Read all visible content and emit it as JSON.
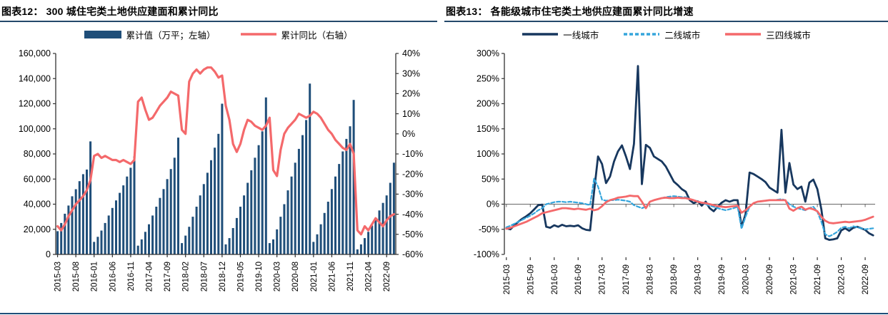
{
  "page": {
    "rule_color": "#1f4e79"
  },
  "months": [
    "2015-03",
    "2015-04",
    "2015-05",
    "2015-06",
    "2015-07",
    "2015-08",
    "2015-09",
    "2015-10",
    "2015-11",
    "2015-12",
    "2016-01",
    "2016-02",
    "2016-03",
    "2016-04",
    "2016-05",
    "2016-06",
    "2016-07",
    "2016-08",
    "2016-09",
    "2016-10",
    "2016-11",
    "2016-12",
    "2017-01",
    "2017-02",
    "2017-03",
    "2017-04",
    "2017-05",
    "2017-06",
    "2017-07",
    "2017-08",
    "2017-09",
    "2017-10",
    "2017-11",
    "2017-12",
    "2018-01",
    "2018-02",
    "2018-03",
    "2018-04",
    "2018-05",
    "2018-06",
    "2018-07",
    "2018-08",
    "2018-09",
    "2018-10",
    "2018-11",
    "2018-12",
    "2019-01",
    "2019-02",
    "2019-03",
    "2019-04",
    "2019-05",
    "2019-06",
    "2019-07",
    "2019-08",
    "2019-09",
    "2019-10",
    "2019-11",
    "2019-12",
    "2020-01",
    "2020-02",
    "2020-03",
    "2020-04",
    "2020-05",
    "2020-06",
    "2020-07",
    "2020-08",
    "2020-09",
    "2020-10",
    "2020-11",
    "2020-12",
    "2021-01",
    "2021-02",
    "2021-03",
    "2021-04",
    "2021-05",
    "2021-06",
    "2021-07",
    "2021-08",
    "2021-09",
    "2021-10",
    "2021-11",
    "2021-12",
    "2022-01",
    "2022-02",
    "2022-03",
    "2022-04",
    "2022-05",
    "2022-06",
    "2022-07",
    "2022-08",
    "2022-09",
    "2022-10",
    "2022-11"
  ],
  "chart_data": [
    {
      "type": "bar",
      "title": "图表12： 300 城住宅类土地供应建面和累计同比",
      "legend": [
        {
          "label": "累计值（万平；左轴）",
          "kind": "bar",
          "color": "#1f4e79",
          "dash": ""
        },
        {
          "label": "累计同比（右轴）",
          "kind": "line",
          "color": "#f4696b",
          "dash": ""
        }
      ],
      "x_tick_every": 5,
      "left_axis": {
        "min": 0,
        "max": 160000,
        "step": 20000,
        "format": "thousands"
      },
      "right_axis": {
        "min": -60,
        "max": 40,
        "step": 10,
        "format": "percent"
      },
      "bars": {
        "name": "累计值（万平；左轴）",
        "color": "#1f4e79",
        "values": [
          18500,
          25000,
          32400,
          38900,
          46300,
          51900,
          58300,
          63900,
          67600,
          90000,
          10000,
          14000,
          19000,
          25000,
          31000,
          37000,
          43000,
          49000,
          55000,
          62000,
          69000,
          78000,
          7000,
          12000,
          18000,
          24000,
          31000,
          38000,
          45000,
          52000,
          60000,
          68000,
          77000,
          93000,
          9000,
          15000,
          22000,
          30000,
          38000,
          47000,
          56000,
          65000,
          75000,
          85000,
          96000,
          120000,
          8000,
          13000,
          21000,
          29000,
          38000,
          47000,
          57000,
          67000,
          77000,
          87000,
          98000,
          125000,
          9000,
          12000,
          20000,
          30000,
          40000,
          51000,
          62000,
          73000,
          84000,
          95000,
          107000,
          136000,
          10000,
          16000,
          24000,
          33000,
          42000,
          52000,
          62000,
          72000,
          82000,
          92000,
          102000,
          123000,
          4000,
          8000,
          13000,
          18000,
          23000,
          29000,
          35000,
          41000,
          47000,
          57000,
          73000
        ]
      },
      "line": {
        "name": "累计同比（右轴）",
        "color": "#f4696b",
        "width": 3.2,
        "values": [
          -46,
          -48,
          -45,
          -41,
          -38,
          -35,
          -33,
          -31,
          -28,
          -23,
          -11,
          -10,
          -12,
          -11,
          -12,
          -13,
          -13,
          -14,
          -13,
          -14,
          -15,
          -13,
          16,
          18,
          12,
          7,
          8,
          11,
          14,
          16,
          18,
          21,
          20,
          19,
          2,
          0,
          26,
          30,
          32,
          30,
          32,
          33,
          33,
          31,
          28,
          29,
          14,
          7,
          -5,
          -9,
          -5,
          2,
          7,
          6,
          4,
          3,
          2,
          4,
          8,
          -18,
          -21,
          -8,
          0,
          3,
          5,
          7,
          10,
          9,
          8,
          9,
          11,
          10,
          8,
          5,
          2,
          0,
          -3,
          -5,
          -7,
          -8,
          -5,
          -10,
          -48,
          -50,
          -46,
          -48,
          -45,
          -42,
          -44,
          -46,
          -43,
          -41,
          -40
        ]
      }
    },
    {
      "type": "line",
      "title": "图表13： 各能级城市住宅类土地供应建面累计同比增速",
      "legend": [
        {
          "label": "一线城市",
          "kind": "line",
          "color": "#17375e",
          "dash": ""
        },
        {
          "label": "二线城市",
          "kind": "line",
          "color": "#35a5dc",
          "dash": "5,3"
        },
        {
          "label": "三四线城市",
          "kind": "line",
          "color": "#f4696b",
          "dash": ""
        }
      ],
      "x_tick_every": 6,
      "y_axis": {
        "min": -100,
        "max": 300,
        "step": 50,
        "format": "percent"
      },
      "series": [
        {
          "name": "一线城市",
          "color": "#17375e",
          "dash": "",
          "width": 2.8,
          "values": [
            -48,
            -50,
            -42,
            -35,
            -29,
            -24,
            -18,
            -10,
            -2,
            -1,
            -45,
            -47,
            -42,
            -45,
            -41,
            -44,
            -43,
            -44,
            -42,
            -48,
            -51,
            -52,
            25,
            95,
            80,
            42,
            55,
            85,
            105,
            117,
            95,
            70,
            120,
            275,
            40,
            118,
            112,
            95,
            90,
            85,
            75,
            60,
            45,
            38,
            30,
            25,
            8,
            2,
            6,
            -3,
            5,
            -8,
            -14,
            -5,
            3,
            8,
            5,
            8,
            8,
            -45,
            -20,
            63,
            60,
            55,
            50,
            44,
            33,
            28,
            23,
            148,
            23,
            82,
            39,
            30,
            35,
            5,
            43,
            49,
            30,
            -10,
            -68,
            -71,
            -70,
            -68,
            -52,
            -48,
            -53,
            -47,
            -45,
            -48,
            -51,
            -58,
            -62
          ]
        },
        {
          "name": "二线城市",
          "color": "#35a5dc",
          "dash": "5,3",
          "width": 2.2,
          "values": [
            -46,
            -43,
            -39,
            -35,
            -31,
            -27,
            -23,
            -18,
            -12,
            -8,
            0,
            2,
            4,
            5,
            5,
            4,
            5,
            4,
            3,
            2,
            0,
            -2,
            51,
            35,
            9,
            7,
            8,
            8,
            9,
            8,
            7,
            5,
            -2,
            -5,
            -8,
            -5,
            5,
            8,
            10,
            12,
            14,
            15,
            16,
            15,
            14,
            14,
            10,
            8,
            6,
            3,
            0,
            -3,
            -5,
            -8,
            -10,
            -12,
            -10,
            -8,
            -5,
            -49,
            -25,
            -5,
            2,
            5,
            6,
            7,
            8,
            8,
            9,
            10,
            8,
            0,
            -5,
            -8,
            -10,
            -12,
            -8,
            -5,
            -15,
            -35,
            -60,
            -64,
            -60,
            -55,
            -47,
            -45,
            -48,
            -44,
            -46,
            -48,
            -50,
            -49,
            -48
          ]
        },
        {
          "name": "三四线城市",
          "color": "#f4696b",
          "dash": "",
          "width": 2.8,
          "values": [
            -49,
            -47,
            -44,
            -41,
            -38,
            -35,
            -31,
            -27,
            -23,
            -18,
            -16,
            -14,
            -12,
            -10,
            -8,
            -8,
            -9,
            -10,
            -9,
            -10,
            -11,
            -9,
            -12,
            -10,
            -4,
            4,
            8,
            10,
            13,
            14,
            15,
            17,
            16,
            16,
            5,
            -8,
            5,
            8,
            10,
            12,
            13,
            12,
            12,
            13,
            12,
            12,
            10,
            8,
            5,
            3,
            2,
            0,
            -2,
            -4,
            -5,
            -6,
            -5,
            -4,
            -3,
            -17,
            -12,
            -5,
            2,
            5,
            6,
            7,
            8,
            8,
            8,
            8,
            8,
            -9,
            -13,
            -8,
            -5,
            -11,
            -8,
            -10,
            -14,
            -25,
            -33,
            -37,
            -38,
            -37,
            -36,
            -35,
            -36,
            -35,
            -34,
            -33,
            -31,
            -28,
            -25
          ]
        }
      ]
    }
  ]
}
